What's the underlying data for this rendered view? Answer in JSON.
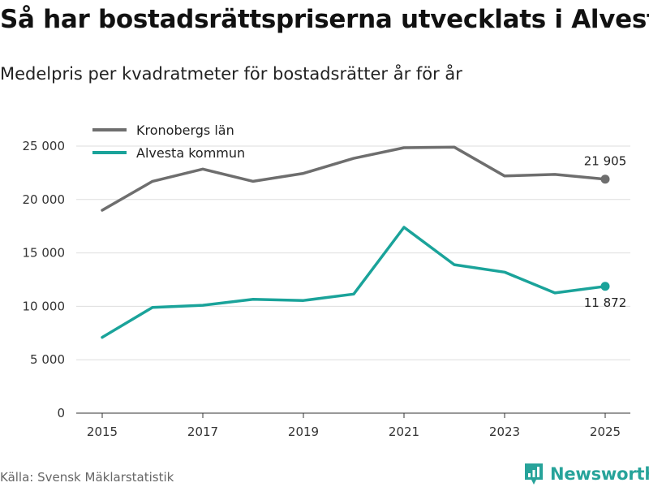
{
  "title": "Så har bostadsrättspriserna utvecklats i Alvesta",
  "subtitle": "Medelpris per kvadratmeter för bostadsrätter år för år",
  "source": "Källa: Svensk Mäklarstatistik",
  "brand": {
    "name": "Newsworthy",
    "icon": "newsworthy-logo-icon",
    "color": "#27a39a"
  },
  "chart_data": {
    "type": "line",
    "title": "Så har bostadsrättspriserna utvecklats i Alvesta",
    "xlabel": "",
    "ylabel": "",
    "x": [
      2015,
      2016,
      2017,
      2018,
      2019,
      2020,
      2021,
      2022,
      2023,
      2024,
      2025
    ],
    "xticks": [
      "2015",
      "2017",
      "2019",
      "2021",
      "2023",
      "2025"
    ],
    "yticks": [
      {
        "value": 0,
        "label": "0"
      },
      {
        "value": 5000,
        "label": "5 000"
      },
      {
        "value": 10000,
        "label": "10 000"
      },
      {
        "value": 15000,
        "label": "15 000"
      },
      {
        "value": 20000,
        "label": "20 000"
      },
      {
        "value": 25000,
        "label": "25 000"
      }
    ],
    "ylim": [
      0,
      27000
    ],
    "xlim": [
      2014.75,
      2025.25
    ],
    "grid": true,
    "legend": "top-left",
    "series": [
      {
        "name": "Kronobergs län",
        "color": "#6e6e6e",
        "values": [
          19000,
          21700,
          22850,
          21700,
          22450,
          23850,
          24850,
          24900,
          22200,
          22350,
          21905
        ],
        "end_label": "21 905"
      },
      {
        "name": "Alvesta kommun",
        "color": "#1aa39a",
        "values": [
          7100,
          9900,
          10100,
          10650,
          10550,
          11150,
          17400,
          13900,
          13200,
          11250,
          11872
        ],
        "end_label": "11 872"
      }
    ]
  }
}
